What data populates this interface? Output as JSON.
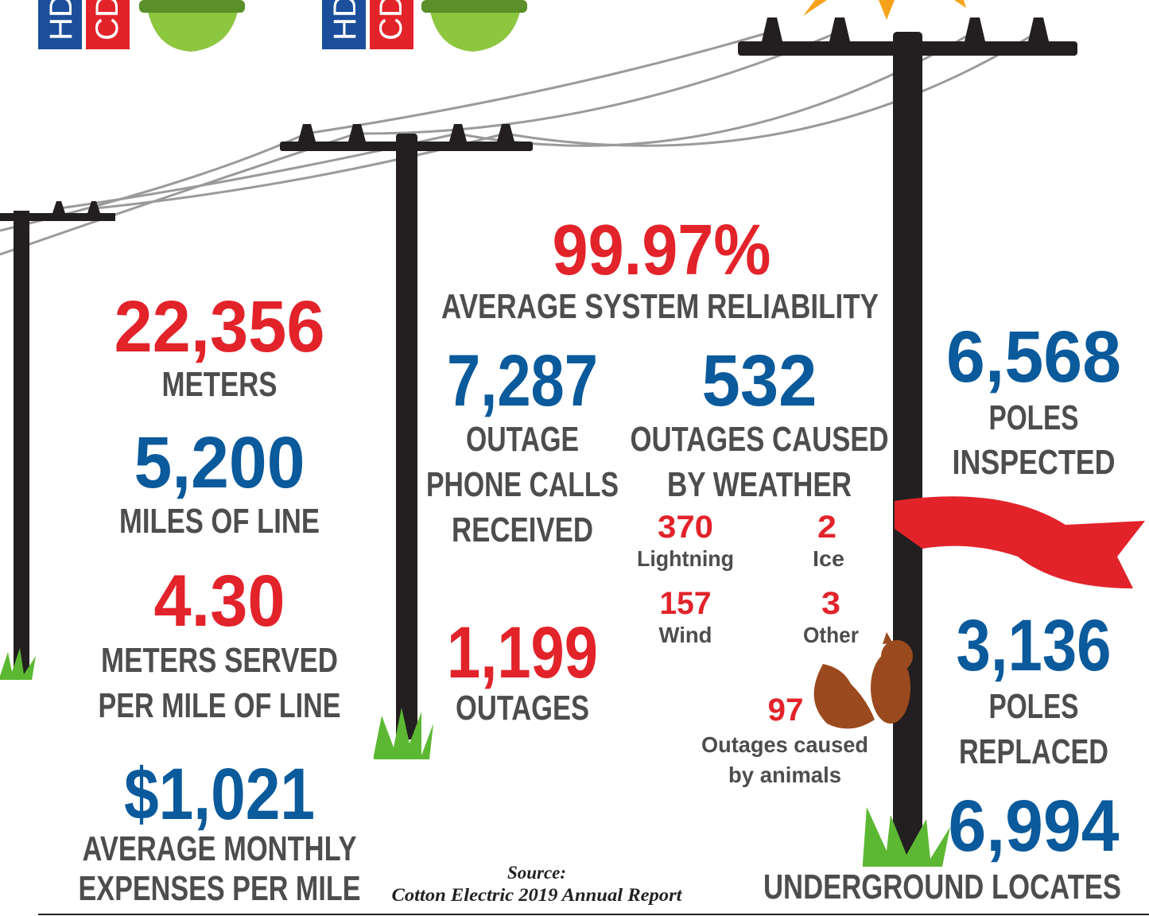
{
  "badges": [
    {
      "left": "HD",
      "right": "CD"
    },
    {
      "left": "HD",
      "right": "CD"
    }
  ],
  "stats": [
    {
      "value": "99.97%",
      "label": [
        "AVERAGE SYSTEM RELIABILITY"
      ]
    },
    {
      "value": "22,356",
      "label": [
        "METERS"
      ]
    },
    {
      "value": "5,200",
      "label": [
        "MILES OF LINE"
      ]
    },
    {
      "value": "4.30",
      "label": [
        "METERS SERVED",
        "PER MILE OF LINE"
      ]
    },
    {
      "value": "$1,021",
      "label": [
        "AVERAGE MONTHLY",
        "EXPENSES PER MILE"
      ]
    },
    {
      "value": "7,287",
      "label": [
        "OUTAGE",
        "PHONE CALLS",
        "RECEIVED"
      ]
    },
    {
      "value": "532",
      "label": [
        "OUTAGES CAUSED",
        "BY WEATHER"
      ]
    },
    {
      "value": "1,199",
      "label": [
        "OUTAGES"
      ]
    },
    {
      "value": "97",
      "label": [
        "Outages caused",
        "by animals"
      ]
    },
    {
      "value": "6,568",
      "label": [
        "POLES",
        "INSPECTED"
      ]
    },
    {
      "value": "3,136",
      "label": [
        "POLES",
        "REPLACED"
      ]
    },
    {
      "value": "6,994",
      "label": [
        "UNDERGROUND LOCATES"
      ]
    }
  ],
  "weather": [
    {
      "value": "370",
      "label": "Lightning"
    },
    {
      "value": "2",
      "label": "Ice"
    },
    {
      "value": "157",
      "label": "Wind"
    },
    {
      "value": "3",
      "label": "Other"
    }
  ],
  "source": {
    "heading": "Source:",
    "text": "Cotton Electric 2019 Annual Report"
  }
}
